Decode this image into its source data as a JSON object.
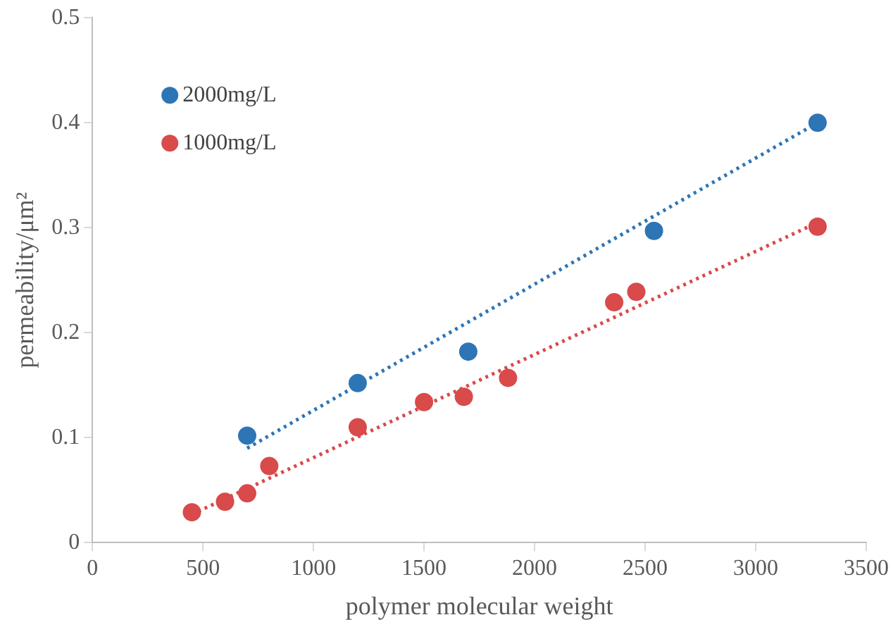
{
  "chart_data": {
    "type": "scatter",
    "xlabel": "polymer molecular weight",
    "ylabel": "permeability/μm²",
    "xlim": [
      0,
      3500
    ],
    "xticks": [
      0,
      500,
      1000,
      1500,
      2000,
      2500,
      3000,
      3500
    ],
    "ylim": [
      0,
      0.5
    ],
    "yticks": [
      0,
      0.1,
      0.2,
      0.3,
      0.4,
      0.5
    ],
    "grid": false,
    "legend": "top left",
    "marker": "circle",
    "series": [
      {
        "name": "2000mg/L",
        "color": "#2e75b6",
        "x": [
          700,
          1200,
          1700,
          2540,
          3280
        ],
        "values": [
          0.102,
          0.152,
          0.182,
          0.297,
          0.4
        ]
      },
      {
        "name": "1000mg/L",
        "color": "#d94a4a",
        "x": [
          450,
          600,
          700,
          800,
          1200,
          1500,
          1680,
          1880,
          2360,
          2460,
          3280
        ],
        "values": [
          0.029,
          0.039,
          0.047,
          0.073,
          0.11,
          0.134,
          0.139,
          0.157,
          0.229,
          0.239,
          0.301
        ]
      },
      {
        "type": "line",
        "color": "#2e75b6",
        "line_style": "dotted",
        "marker": "none",
        "x": [
          700,
          3280
        ],
        "values": [
          0.09,
          0.4
        ]
      },
      {
        "type": "line",
        "color": "#d94a4a",
        "line_style": "dotted",
        "marker": "none",
        "x": [
          450,
          3280
        ],
        "values": [
          0.027,
          0.305
        ]
      }
    ]
  }
}
